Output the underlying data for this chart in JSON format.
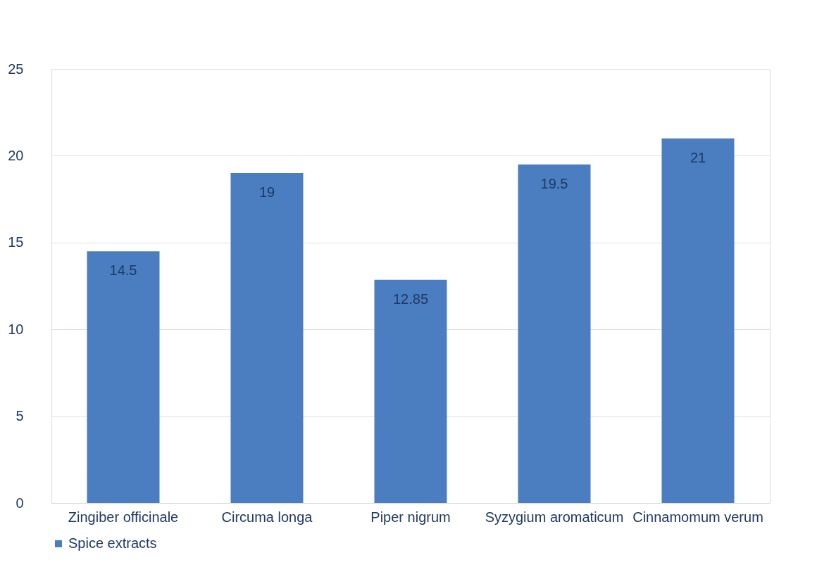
{
  "chart_data": {
    "type": "bar",
    "categories": [
      "Zingiber officinale",
      "Circuma longa",
      "Piper nigrum",
      "Syzygium aromaticum",
      "Cinnamomum verum"
    ],
    "series": [
      {
        "name": "Spice extracts",
        "color": "#4a7ec0",
        "values": [
          14.5,
          19,
          12.85,
          19.5,
          21
        ]
      }
    ],
    "ylim": [
      0,
      25
    ],
    "yticks": [
      0,
      5,
      10,
      15,
      20,
      25
    ],
    "grid": "y",
    "legend": "bottom",
    "data_labels": true
  }
}
